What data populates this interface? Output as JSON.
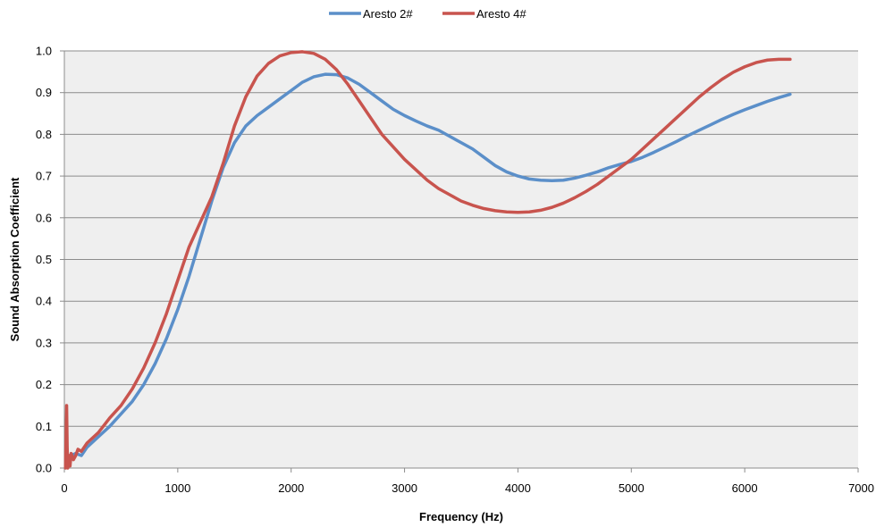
{
  "chart_data": {
    "type": "line",
    "title": "",
    "xlabel": "Frequency (Hz)",
    "ylabel": "Sound Absorption Coefficient",
    "xlim": [
      0,
      7000
    ],
    "ylim": [
      0,
      1.0
    ],
    "x_ticks": [
      "0",
      "1000",
      "2000",
      "3000",
      "4000",
      "5000",
      "6000",
      "7000"
    ],
    "y_ticks": [
      "0.0",
      "0.1",
      "0.2",
      "0.3",
      "0.4",
      "0.5",
      "0.6",
      "0.7",
      "0.8",
      "0.9",
      "1.0"
    ],
    "grid": "horizontal",
    "legend_position": "top",
    "plot_background": "#efefef",
    "series": [
      {
        "name": "Aresto 2#",
        "color": "#5b8fc9",
        "points": [
          [
            20,
            0.03
          ],
          [
            60,
            0.03
          ],
          [
            100,
            0.035
          ],
          [
            150,
            0.03
          ],
          [
            200,
            0.05
          ],
          [
            300,
            0.075
          ],
          [
            400,
            0.1
          ],
          [
            500,
            0.13
          ],
          [
            600,
            0.16
          ],
          [
            700,
            0.2
          ],
          [
            800,
            0.25
          ],
          [
            900,
            0.31
          ],
          [
            1000,
            0.38
          ],
          [
            1100,
            0.46
          ],
          [
            1200,
            0.55
          ],
          [
            1300,
            0.64
          ],
          [
            1400,
            0.72
          ],
          [
            1500,
            0.78
          ],
          [
            1600,
            0.82
          ],
          [
            1700,
            0.845
          ],
          [
            1800,
            0.865
          ],
          [
            1900,
            0.885
          ],
          [
            2000,
            0.905
          ],
          [
            2100,
            0.925
          ],
          [
            2200,
            0.938
          ],
          [
            2300,
            0.944
          ],
          [
            2400,
            0.943
          ],
          [
            2500,
            0.935
          ],
          [
            2600,
            0.92
          ],
          [
            2700,
            0.9
          ],
          [
            2800,
            0.88
          ],
          [
            2900,
            0.86
          ],
          [
            3000,
            0.845
          ],
          [
            3100,
            0.832
          ],
          [
            3200,
            0.82
          ],
          [
            3300,
            0.81
          ],
          [
            3400,
            0.795
          ],
          [
            3500,
            0.78
          ],
          [
            3600,
            0.765
          ],
          [
            3700,
            0.745
          ],
          [
            3800,
            0.725
          ],
          [
            3900,
            0.71
          ],
          [
            4000,
            0.7
          ],
          [
            4100,
            0.693
          ],
          [
            4200,
            0.69
          ],
          [
            4300,
            0.689
          ],
          [
            4400,
            0.69
          ],
          [
            4500,
            0.695
          ],
          [
            4600,
            0.702
          ],
          [
            4700,
            0.71
          ],
          [
            4800,
            0.72
          ],
          [
            4900,
            0.728
          ],
          [
            5000,
            0.735
          ],
          [
            5100,
            0.745
          ],
          [
            5200,
            0.757
          ],
          [
            5300,
            0.77
          ],
          [
            5400,
            0.783
          ],
          [
            5500,
            0.797
          ],
          [
            5600,
            0.81
          ],
          [
            5700,
            0.823
          ],
          [
            5800,
            0.836
          ],
          [
            5900,
            0.848
          ],
          [
            6000,
            0.859
          ],
          [
            6100,
            0.869
          ],
          [
            6200,
            0.879
          ],
          [
            6300,
            0.888
          ],
          [
            6400,
            0.896
          ]
        ]
      },
      {
        "name": "Aresto 4#",
        "color": "#c8544e",
        "points": [
          [
            10,
            0.0
          ],
          [
            20,
            0.15
          ],
          [
            25,
            0.05
          ],
          [
            30,
            0.0
          ],
          [
            40,
            0.03
          ],
          [
            50,
            0.005
          ],
          [
            60,
            0.035
          ],
          [
            80,
            0.02
          ],
          [
            100,
            0.03
          ],
          [
            120,
            0.045
          ],
          [
            150,
            0.04
          ],
          [
            200,
            0.06
          ],
          [
            300,
            0.085
          ],
          [
            400,
            0.12
          ],
          [
            500,
            0.15
          ],
          [
            600,
            0.19
          ],
          [
            700,
            0.24
          ],
          [
            800,
            0.3
          ],
          [
            900,
            0.37
          ],
          [
            1000,
            0.45
          ],
          [
            1100,
            0.53
          ],
          [
            1200,
            0.59
          ],
          [
            1300,
            0.65
          ],
          [
            1400,
            0.73
          ],
          [
            1500,
            0.82
          ],
          [
            1600,
            0.89
          ],
          [
            1700,
            0.94
          ],
          [
            1800,
            0.97
          ],
          [
            1900,
            0.988
          ],
          [
            2000,
            0.996
          ],
          [
            2100,
            0.998
          ],
          [
            2200,
            0.994
          ],
          [
            2300,
            0.98
          ],
          [
            2400,
            0.955
          ],
          [
            2500,
            0.92
          ],
          [
            2600,
            0.88
          ],
          [
            2700,
            0.84
          ],
          [
            2800,
            0.8
          ],
          [
            2900,
            0.77
          ],
          [
            3000,
            0.74
          ],
          [
            3100,
            0.715
          ],
          [
            3200,
            0.69
          ],
          [
            3300,
            0.67
          ],
          [
            3400,
            0.655
          ],
          [
            3500,
            0.64
          ],
          [
            3600,
            0.63
          ],
          [
            3700,
            0.622
          ],
          [
            3800,
            0.617
          ],
          [
            3900,
            0.614
          ],
          [
            4000,
            0.613
          ],
          [
            4100,
            0.614
          ],
          [
            4200,
            0.618
          ],
          [
            4300,
            0.625
          ],
          [
            4400,
            0.635
          ],
          [
            4500,
            0.648
          ],
          [
            4600,
            0.663
          ],
          [
            4700,
            0.68
          ],
          [
            4800,
            0.7
          ],
          [
            4900,
            0.72
          ],
          [
            5000,
            0.74
          ],
          [
            5100,
            0.765
          ],
          [
            5200,
            0.79
          ],
          [
            5300,
            0.815
          ],
          [
            5400,
            0.84
          ],
          [
            5500,
            0.865
          ],
          [
            5600,
            0.89
          ],
          [
            5700,
            0.912
          ],
          [
            5800,
            0.932
          ],
          [
            5900,
            0.949
          ],
          [
            6000,
            0.962
          ],
          [
            6100,
            0.972
          ],
          [
            6200,
            0.978
          ],
          [
            6300,
            0.98
          ],
          [
            6400,
            0.98
          ]
        ]
      }
    ]
  }
}
